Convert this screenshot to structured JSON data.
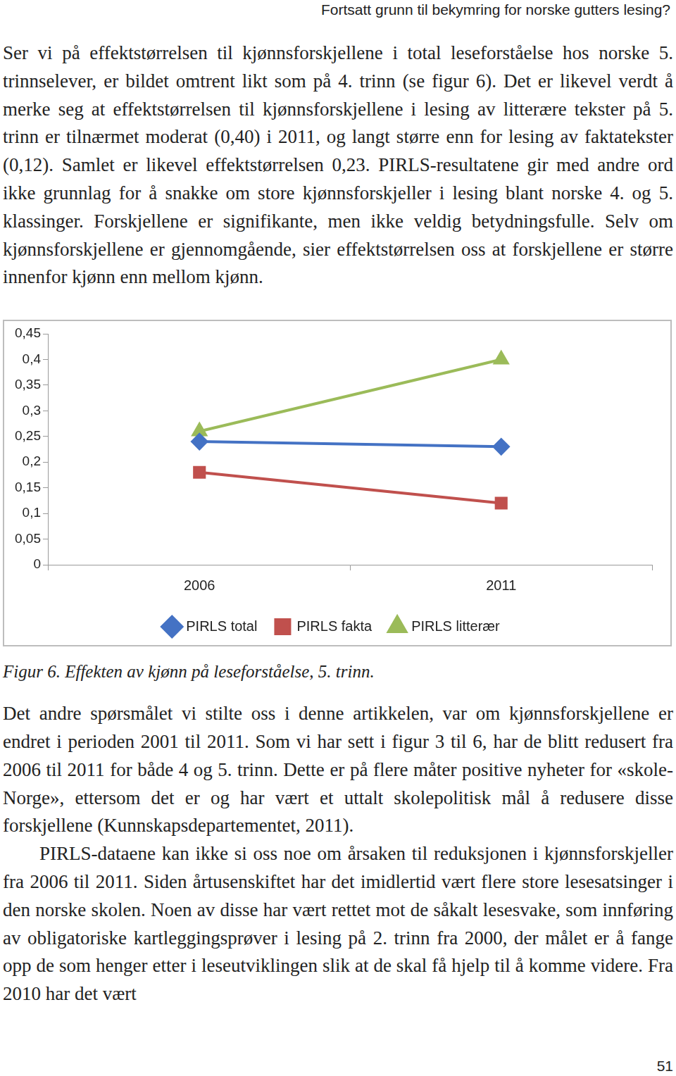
{
  "header": "Fortsatt grunn til bekymring for norske gutters lesing?",
  "paragraphs_before": [
    "Ser vi på effektstørrelsen til kjønnsforskjellene i total leseforståelse hos norske 5. trinnselever, er bildet omtrent likt som på 4. trinn (se figur 6). Det er likevel verdt å merke seg at effektstørrelsen til kjønnsforskjellene i lesing av litterære tekster på 5. trinn er tilnærmet moderat (0,40) i 2011, og langt større enn for lesing av faktatekster (0,12). Samlet er likevel effektstørrelsen 0,23. PIRLS-resultatene gir med andre ord ikke grunnlag for å snakke om store kjønnsforskjeller i lesing blant norske 4. og 5. klassinger. Forskjellene er signifikante, men ikke veldig betydningsfulle. Selv om kjønnsforskjellene er gjennomgående, sier effektstørrelsen oss at forskjellene er større innenfor kjønn enn mellom kjønn."
  ],
  "chart_data": {
    "type": "line",
    "categories": [
      "2006",
      "2011"
    ],
    "series": [
      {
        "name": "PIRLS total",
        "color": "#4472c4",
        "marker": "diamond",
        "values": [
          0.24,
          0.23
        ]
      },
      {
        "name": "PIRLS fakta",
        "color": "#c0504d",
        "marker": "square",
        "values": [
          0.18,
          0.12
        ]
      },
      {
        "name": "PIRLS litterær",
        "color": "#9bbb59",
        "marker": "triangle",
        "values": [
          0.26,
          0.4
        ]
      }
    ],
    "ylim": [
      0,
      0.45
    ],
    "yticks": [
      0,
      {
        "value": 0.05,
        "label": "0,05"
      },
      {
        "value": 0.1,
        "label": "0,1"
      },
      {
        "value": 0.15,
        "label": "0,15"
      },
      {
        "value": 0.2,
        "label": "0,2"
      },
      {
        "value": 0.25,
        "label": "0,25"
      },
      {
        "value": 0.3,
        "label": "0,3"
      },
      {
        "value": 0.35,
        "label": "0,35"
      },
      {
        "value": 0.4,
        "label": "0,4"
      },
      {
        "value": 0.45,
        "label": "0,45"
      }
    ],
    "grid": false,
    "legend": "bottom"
  },
  "caption": "Figur 6. Effekten av kjønn på leseforståelse, 5. trinn.",
  "paragraphs_after": [
    "Det andre spørsmålet vi stilte oss i denne artikkelen, var om kjønnsforskjellene er endret i perioden 2001 til 2011. Som vi har sett i figur 3 til 6, har de blitt redusert fra 2006 til 2011 for både 4 og 5. trinn. Dette er på flere måter positive nyheter for «skole-Norge», ettersom det er og har vært et uttalt skolepolitisk mål å redusere disse forskjellene (Kunnskapsdepartementet, 2011).",
    "PIRLS-dataene kan ikke si oss noe om årsaken til reduksjonen i kjønnsforskjeller fra 2006 til 2011. Siden årtusenskiftet har det imidlertid vært flere store lesesatsinger i den norske skolen. Noen av disse har vært rettet mot de såkalt lesesvake, som innføring av obligatoriske kartleggingsprøver i lesing på 2. trinn fra 2000, der målet er å fange opp de som henger etter i leseutviklingen slik at de skal få hjelp til å komme videre. Fra 2010 har det vært"
  ],
  "page_number": 51
}
